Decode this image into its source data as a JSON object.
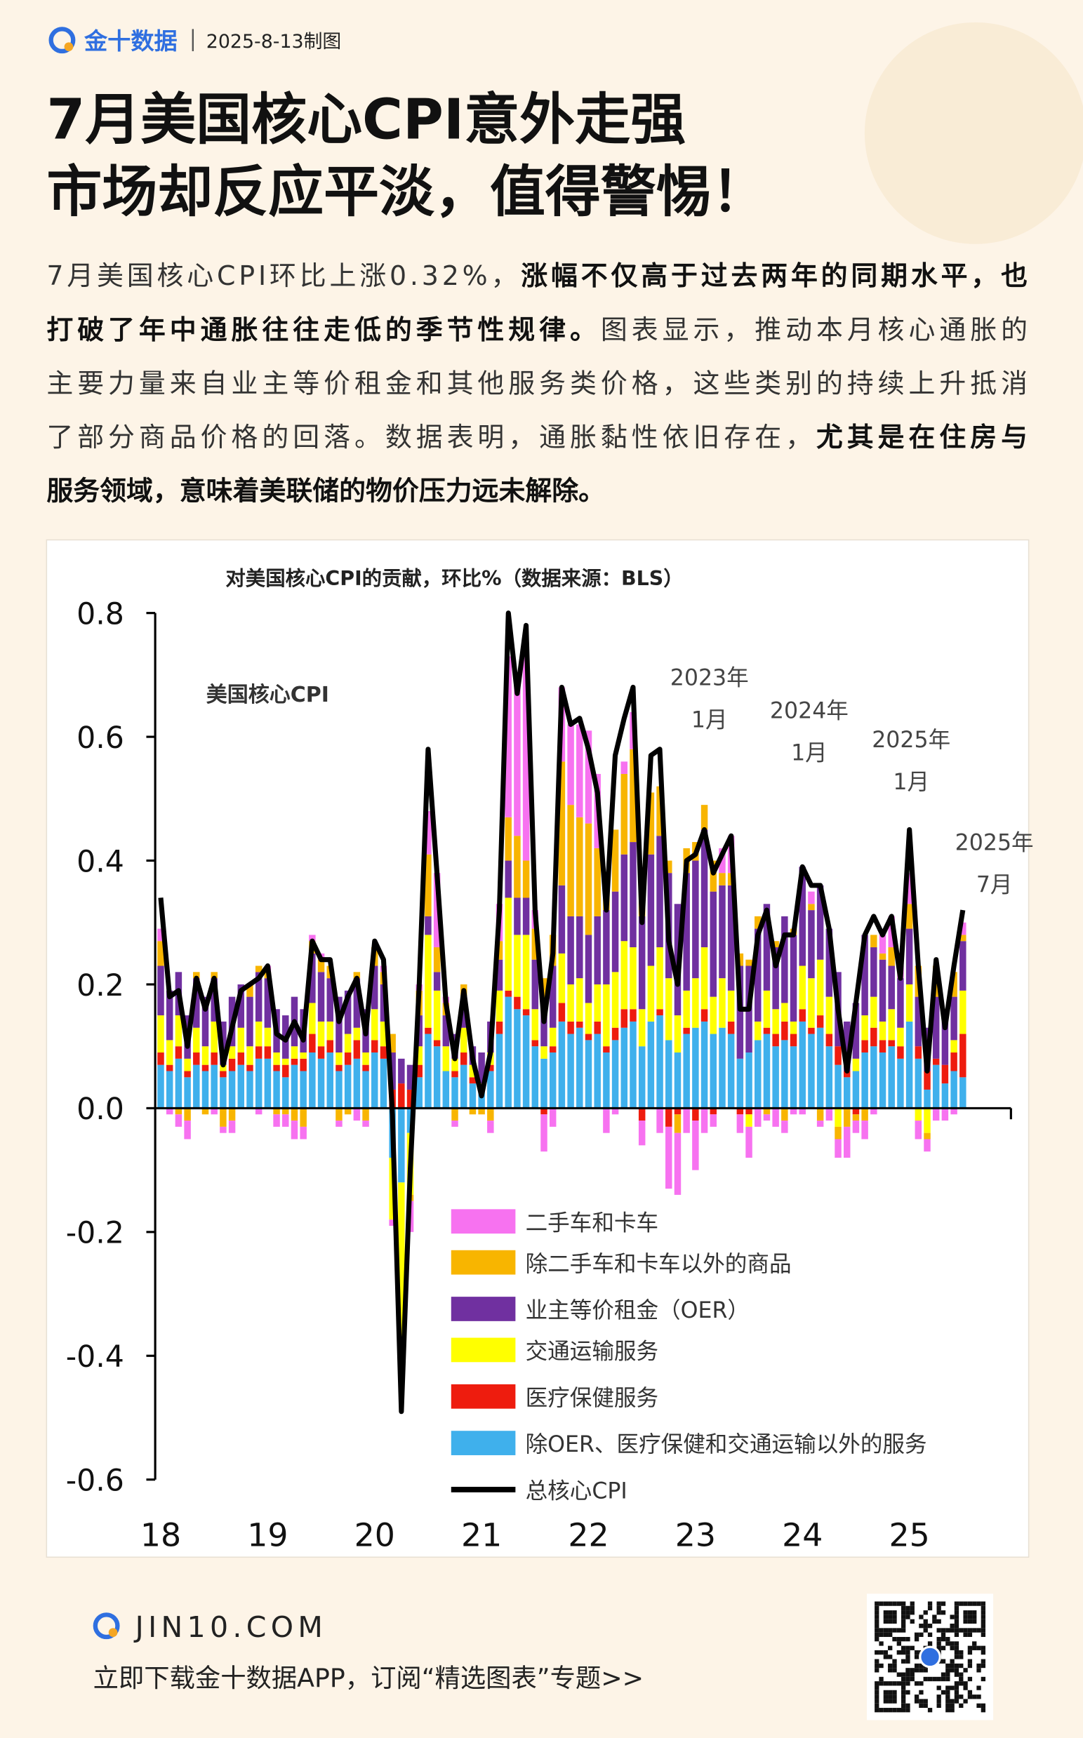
{
  "header": {
    "brand": "金十数据",
    "date": "2025-8-13制图"
  },
  "title": [
    "7月美国核心CPI意外走强",
    "市场却反应平淡，值得警惕！"
  ],
  "paragraph": {
    "lines": [
      [
        {
          "text": "7月美国核心CPI环比上涨0.32%，",
          "bold": false
        },
        {
          "text": "涨幅不仅高于过去两年的同期水平，也",
          "bold": true
        }
      ],
      [
        {
          "text": "打破了年中通胀往往走低的季节性规律。",
          "bold": true
        },
        {
          "text": "图表显示，推动本月核心通胀的",
          "bold": false
        }
      ],
      [
        {
          "text": "主要力量来自业主等价租金和其他服务类价格，这些类别的持续上升抵消",
          "bold": false
        }
      ],
      [
        {
          "text": "了部分商品价格的回落。数据表明，通胀黏性依旧存在，",
          "bold": false
        },
        {
          "text": "尤其是在住房与",
          "bold": true
        }
      ],
      [
        {
          "text": "服务领域，意味着美联储的物价压力远未解除。",
          "bold": true
        }
      ]
    ]
  },
  "chart_data": {
    "type": "bar",
    "stacked": true,
    "title": "对美国核心CPI的贡献，环比%（数据来源：BLS）",
    "annotations": [
      {
        "lines": [
          "美国核心CPI"
        ]
      },
      {
        "lines": [
          "2023年",
          "1月"
        ]
      },
      {
        "lines": [
          "2024年",
          "1月"
        ]
      },
      {
        "lines": [
          "2025年",
          "1月"
        ]
      },
      {
        "lines": [
          "2025年",
          "7月"
        ]
      }
    ],
    "categories": [
      "18",
      null,
      null,
      null,
      null,
      null,
      null,
      null,
      null,
      null,
      null,
      null,
      "19",
      null,
      null,
      null,
      null,
      null,
      null,
      null,
      null,
      null,
      null,
      null,
      "20",
      null,
      null,
      null,
      null,
      null,
      null,
      null,
      null,
      null,
      null,
      null,
      "21",
      null,
      null,
      null,
      null,
      null,
      null,
      null,
      null,
      null,
      null,
      null,
      "22",
      null,
      null,
      null,
      null,
      null,
      null,
      null,
      null,
      null,
      null,
      null,
      "23",
      null,
      null,
      null,
      null,
      null,
      null,
      null,
      null,
      null,
      null,
      null,
      "24",
      null,
      null,
      null,
      null,
      null,
      null,
      null,
      null,
      null,
      null,
      null,
      "25",
      null,
      null,
      null,
      null,
      null,
      null
    ],
    "ylim": [
      -0.6,
      0.8
    ],
    "yticks": [
      -0.6,
      -0.4,
      -0.2,
      {
        "value": 0,
        "label": "0.0"
      },
      0.2,
      0.4,
      0.6,
      0.8
    ],
    "series": [
      {
        "name": "二手车和卡车",
        "color": "#f772f0",
        "values": [
          0.02,
          -0.01,
          -0.02,
          -0.03,
          0,
          0,
          -0.01,
          -0.01,
          -0.02,
          0,
          0,
          -0.01,
          0.01,
          -0.02,
          -0.02,
          -0.03,
          -0.02,
          0.01,
          0.01,
          0,
          -0.01,
          0,
          -0.02,
          -0.01,
          0,
          0.01,
          -0.01,
          -0.02,
          -0.05,
          0.01,
          0.07,
          0.12,
          0.01,
          -0.01,
          0,
          0,
          0,
          -0.02,
          0.06,
          0.26,
          0.25,
          0.33,
          0.03,
          -0.06,
          -0.03,
          0.12,
          0.13,
          0.15,
          0.15,
          0.12,
          -0.04,
          -0.01,
          0.02,
          0.06,
          -0.04,
          0,
          -0.04,
          -0.1,
          -0.1,
          -0.04,
          -0.08,
          -0.04,
          -0.02,
          0.04,
          0.06,
          -0.03,
          -0.05,
          -0.03,
          -0.01,
          -0.03,
          -0.02,
          -0.01,
          -0.01,
          0.02,
          -0.01,
          -0.02,
          -0.03,
          -0.05,
          -0.02,
          -0.03,
          -0.01,
          0.03,
          0.05,
          0.02,
          0.05,
          -0.03,
          -0.02,
          -0.02,
          -0.02,
          -0.01,
          0.02
        ]
      },
      {
        "name": "除二手车和卡车以外的商品",
        "color": "#f8b500",
        "values": [
          0.04,
          0,
          -0.01,
          -0.02,
          0.01,
          -0.01,
          0.01,
          -0.03,
          -0.02,
          0,
          0.02,
          0.01,
          0.01,
          -0.01,
          -0.01,
          -0.02,
          -0.03,
          0.02,
          0.02,
          0.02,
          -0.02,
          -0.01,
          0.01,
          -0.02,
          0.03,
          0.02,
          0.03,
          -0.05,
          -0.01,
          0.04,
          0.1,
          0.04,
          0.02,
          -0.02,
          0.03,
          -0.01,
          -0.01,
          -0.02,
          0.03,
          0.07,
          0.1,
          0.06,
          0.05,
          0.04,
          0.05,
          0.2,
          0.18,
          0.16,
          0.18,
          0.11,
          0.03,
          0.1,
          0.13,
          0.15,
          0.06,
          0.1,
          0.08,
          0.02,
          -0.03,
          0.04,
          0.03,
          0.04,
          0.05,
          0.02,
          0.02,
          0.02,
          0.01,
          0.02,
          -0.01,
          0.01,
          -0.02,
          0.01,
          0,
          0.01,
          -0.02,
          0,
          -0.02,
          -0.03,
          -0.01,
          -0.02,
          0.02,
          0.01,
          0.03,
          0,
          0.04,
          0.05,
          -0.01,
          0.05,
          0.02,
          0.04,
          0.01
        ]
      },
      {
        "name": "业主等价租金（OER）",
        "color": "#7030a0",
        "values": [
          0.08,
          0.08,
          0.07,
          0.07,
          0.08,
          0.08,
          0.07,
          0.07,
          0.08,
          0.07,
          0.08,
          0.08,
          0.08,
          0.07,
          0.07,
          0.08,
          0.07,
          0.08,
          0.08,
          0.07,
          0.09,
          0.07,
          0.08,
          0.07,
          0.07,
          0.06,
          0.06,
          0.04,
          0.04,
          0.05,
          0.03,
          0.03,
          0.05,
          0.04,
          0.04,
          0.03,
          0.05,
          0.05,
          0.05,
          0.06,
          0.06,
          0.06,
          0.08,
          0.07,
          0.1,
          0.11,
          0.11,
          0.1,
          0.11,
          0.11,
          0.12,
          0.13,
          0.14,
          0.17,
          0.15,
          0.18,
          0.18,
          0.17,
          0.18,
          0.19,
          0.19,
          0.19,
          0.17,
          0.15,
          0.17,
          0.15,
          0.14,
          0.15,
          0.14,
          0.1,
          0.14,
          0.14,
          0.16,
          0.11,
          0.12,
          0.11,
          0.12,
          0.08,
          0.09,
          0.13,
          0.08,
          0.1,
          0.07,
          0.08,
          0.09,
          0.08,
          0.07,
          0.1,
          0.07,
          0.07,
          0.08
        ]
      },
      {
        "name": "交通运输服务",
        "color": "#ffff00",
        "values": [
          0.06,
          0.04,
          0.05,
          0.02,
          0.04,
          0.03,
          0.05,
          0.01,
          0.02,
          0.04,
          0.03,
          0.04,
          0.03,
          0.02,
          0.01,
          0.02,
          0.01,
          0.05,
          0.04,
          0.03,
          0.02,
          0.03,
          0.02,
          0.02,
          0.05,
          0.04,
          -0.1,
          -0.25,
          -0.1,
          0.03,
          0.15,
          0.08,
          0.04,
          0.02,
          0.04,
          0.02,
          0.01,
          0.02,
          0.05,
          0.15,
          0.1,
          0.12,
          0.05,
          0.02,
          0.03,
          0.08,
          0.06,
          0.07,
          0.05,
          0.06,
          0.1,
          0.09,
          0.11,
          0.1,
          0.06,
          0.09,
          0.1,
          0.1,
          0.06,
          0.06,
          0.08,
          0.1,
          0.06,
          0.08,
          0.05,
          0,
          -0.02,
          0.03,
          0.06,
          0.04,
          0.03,
          0.02,
          0.07,
          0.08,
          0.09,
          0.06,
          -0.03,
          0,
          0.02,
          0.04,
          0.05,
          0.03,
          0.05,
          0.03,
          0.06,
          -0.02,
          -0.04,
          0,
          0,
          0.02,
          0.07
        ]
      },
      {
        "name": "医疗保健服务",
        "color": "#ee1c0e",
        "values": [
          0.02,
          0.01,
          0.02,
          0.01,
          0.02,
          0.01,
          0.02,
          0.01,
          0.02,
          0.02,
          0.01,
          0.02,
          0.02,
          0.01,
          0.02,
          0.01,
          0.02,
          0.03,
          0.02,
          0.02,
          0.01,
          0.02,
          0.03,
          0.01,
          0.02,
          0.02,
          0.03,
          0.04,
          0.03,
          0.02,
          0.01,
          0.01,
          0,
          0.01,
          0.02,
          0.01,
          0,
          0.01,
          0.02,
          0.01,
          0.02,
          0.01,
          0.01,
          -0.01,
          0.01,
          0.03,
          0.02,
          0.01,
          0.01,
          0.02,
          0.01,
          0.02,
          0.03,
          0.02,
          -0.02,
          0,
          0.01,
          -0.03,
          -0.01,
          0.01,
          -0.02,
          0.02,
          -0.01,
          0,
          0.02,
          -0.01,
          -0.01,
          0,
          0.01,
          0.02,
          0.03,
          0.02,
          0.02,
          0.01,
          0.02,
          0.02,
          0.03,
          0.01,
          -0.01,
          0.02,
          0.03,
          0.02,
          0.01,
          0.02,
          0,
          0.02,
          0.03,
          0.01,
          0.03,
          0.03,
          0.07
        ]
      },
      {
        "name": "除OER、医疗保健和交通运输以外的服务",
        "color": "#3fb0ec",
        "values": [
          0.07,
          0.06,
          0.08,
          0.05,
          0.07,
          0.06,
          0.07,
          0.05,
          0.06,
          0.07,
          0.06,
          0.08,
          0.08,
          0.06,
          0.05,
          0.07,
          0.06,
          0.09,
          0.08,
          0.09,
          0.06,
          0.07,
          0.08,
          0.06,
          0.09,
          0.08,
          -0.08,
          -0.12,
          -0.04,
          0.05,
          0.12,
          0.1,
          0.06,
          0.05,
          0.07,
          0.04,
          0.03,
          0.06,
          0.12,
          0.18,
          0.16,
          0.15,
          0.1,
          0.08,
          0.09,
          0.14,
          0.12,
          0.13,
          0.11,
          0.12,
          0.09,
          0.11,
          0.13,
          0.14,
          0.1,
          0.14,
          0.15,
          0.11,
          0.09,
          0.12,
          0.13,
          0.14,
          0.12,
          0.13,
          0.12,
          0.08,
          0.09,
          0.11,
          0.12,
          0.1,
          0.11,
          0.1,
          0.14,
          0.12,
          0.13,
          0.1,
          0.07,
          0.05,
          0.06,
          0.09,
          0.1,
          0.09,
          0.1,
          0.08,
          0.14,
          0.08,
          0.03,
          0.07,
          0.04,
          0.06,
          0.05
        ]
      },
      {
        "name": "总核心CPI",
        "color": "#000000",
        "type": "line",
        "values": [
          0.34,
          0.18,
          0.19,
          0.1,
          0.21,
          0.16,
          0.21,
          0.07,
          0.13,
          0.19,
          0.2,
          0.21,
          0.23,
          0.12,
          0.11,
          0.14,
          0.11,
          0.27,
          0.24,
          0.24,
          0.14,
          0.18,
          0.21,
          0.12,
          0.27,
          0.24,
          -0.01,
          -0.49,
          -0.1,
          0.2,
          0.58,
          0.38,
          0.17,
          0.08,
          0.19,
          0.08,
          0.02,
          0.09,
          0.32,
          0.8,
          0.67,
          0.78,
          0.32,
          0.14,
          0.25,
          0.68,
          0.62,
          0.63,
          0.58,
          0.51,
          0.32,
          0.57,
          0.63,
          0.68,
          0.3,
          0.57,
          0.58,
          0.27,
          0.2,
          0.4,
          0.41,
          0.45,
          0.38,
          0.41,
          0.44,
          0.16,
          0.16,
          0.28,
          0.32,
          0.23,
          0.28,
          0.28,
          0.39,
          0.36,
          0.36,
          0.29,
          0.16,
          0.06,
          0.17,
          0.28,
          0.31,
          0.28,
          0.31,
          0.21,
          0.45,
          0.23,
          0.06,
          0.24,
          0.13,
          0.23,
          0.32
        ]
      }
    ]
  },
  "footer": {
    "site": "JIN10.COM",
    "cta": "立即下载金十数据APP，订阅“精选图表”专题>>"
  }
}
